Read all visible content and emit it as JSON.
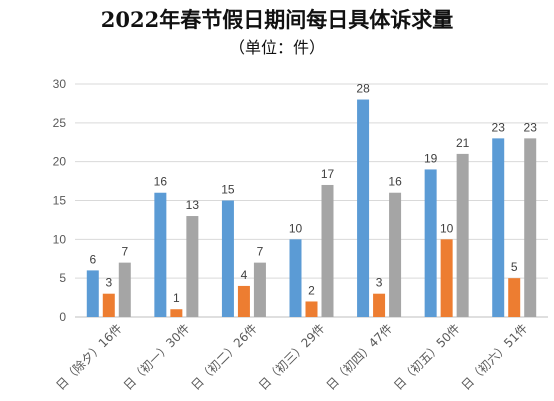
{
  "chart_data": {
    "type": "bar",
    "title": "2022年春节假日期间每日具体诉求量",
    "subtitle": "（单位：件）",
    "categories": [
      "日（除夕）16件",
      "日（初一）30件",
      "日（初二）26件",
      "日（初三）29件",
      "日（初四）47件",
      "日（初五）50件",
      "日（初六）51件"
    ],
    "series": [
      {
        "values": [
          6,
          16,
          15,
          10,
          28,
          19,
          23
        ],
        "color": "#5B9BD5"
      },
      {
        "values": [
          3,
          1,
          4,
          2,
          3,
          10,
          5
        ],
        "color": "#ED7D31"
      },
      {
        "values": [
          7,
          13,
          7,
          17,
          16,
          21,
          23
        ],
        "color": "#A5A5A5"
      }
    ],
    "ylim": [
      0,
      30
    ],
    "yticks": [
      0,
      5,
      10,
      15,
      20,
      25,
      30
    ],
    "grid": true,
    "legend": "none",
    "data_labels": true
  }
}
